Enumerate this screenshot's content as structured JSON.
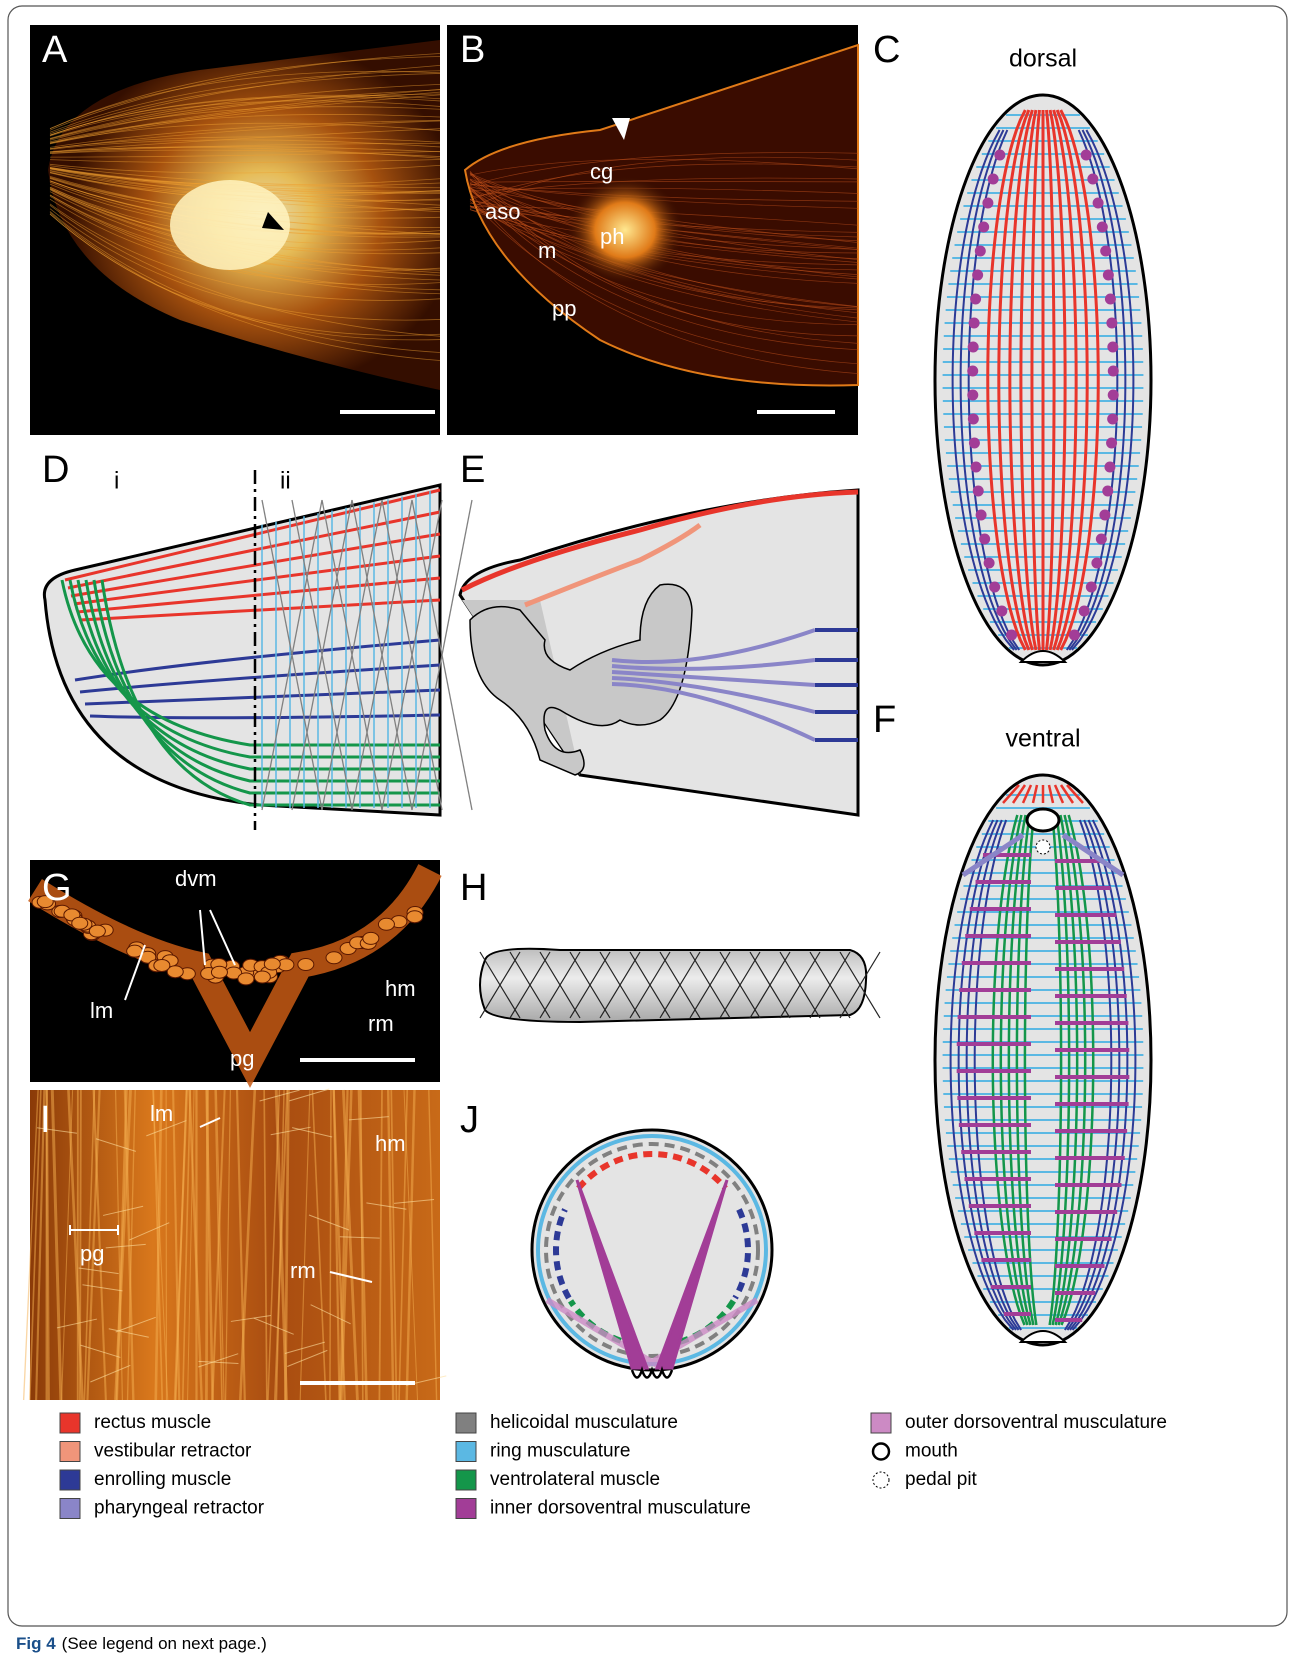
{
  "panel_letters": [
    "A",
    "B",
    "C",
    "D",
    "E",
    "F",
    "G",
    "H",
    "I",
    "J"
  ],
  "view_labels": {
    "dorsal": "dorsal",
    "ventral": "ventral"
  },
  "panel_b_labels": [
    "aso",
    "cg",
    "ph",
    "m",
    "pp"
  ],
  "panel_d_labels": [
    "i",
    "ii"
  ],
  "panel_g_labels": [
    "dvm",
    "lm",
    "hm",
    "rm",
    "pg"
  ],
  "panel_i_labels": [
    "lm",
    "hm",
    "pg",
    "rm"
  ],
  "legend": [
    {
      "label": "rectus muscle",
      "color": "#e8352b",
      "marker": "square"
    },
    {
      "label": "vestibular retractor",
      "color": "#f0957a",
      "marker": "square"
    },
    {
      "label": "enrolling muscle",
      "color": "#2d3a96",
      "marker": "square"
    },
    {
      "label": "pharyngeal retractor",
      "color": "#8a85c8",
      "marker": "square"
    },
    {
      "label": "helicoidal musculature",
      "color": "#808080",
      "marker": "square"
    },
    {
      "label": "ring musculature",
      "color": "#5bb8e3",
      "marker": "square"
    },
    {
      "label": "ventrolateral muscle",
      "color": "#14964a",
      "marker": "square"
    },
    {
      "label": "inner dorsoventral musculature",
      "color": "#a23d97",
      "marker": "square"
    },
    {
      "label": "outer dorsoventral musculature",
      "color": "#cc8ac4",
      "marker": "square"
    },
    {
      "label": "mouth",
      "color": "#000000",
      "marker": "circle"
    },
    {
      "label": "pedal pit",
      "color": "#000000",
      "marker": "dotted-circle"
    }
  ],
  "caption": {
    "figure": "Fig 4",
    "text": "(See legend on next page.)"
  }
}
